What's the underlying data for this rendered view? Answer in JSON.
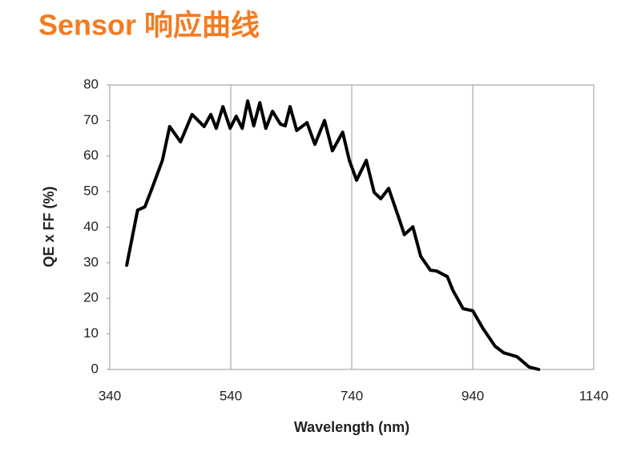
{
  "chart_data": {
    "type": "line",
    "title": "Sensor 响应曲线",
    "xlabel": "Wavelength (nm)",
    "ylabel": "QE x FF (%)",
    "x": [
      368,
      386,
      398,
      410,
      427,
      439,
      457,
      476,
      496,
      507,
      516,
      527,
      539,
      549,
      559,
      568,
      578,
      588,
      598,
      609,
      622,
      630,
      638,
      649,
      666,
      679,
      695,
      708,
      725,
      736,
      748,
      764,
      777,
      788,
      801,
      817,
      827,
      841,
      854,
      870,
      880,
      898,
      907,
      924,
      940,
      957,
      977,
      991,
      1013,
      1033,
      1049
    ],
    "series": [
      {
        "name": "QE x FF",
        "color": "#000000",
        "values": [
          29.3,
          44.8,
          45.7,
          51,
          58.8,
          68.3,
          64,
          71.7,
          68.3,
          71.7,
          67.8,
          73.9,
          67.8,
          71.2,
          67.8,
          75.5,
          68.5,
          75,
          67.8,
          72.6,
          69,
          68.5,
          73.9,
          67.2,
          69.4,
          63.3,
          70,
          61.5,
          66.7,
          58.8,
          53.2,
          58.8,
          49.8,
          48,
          50.9,
          43,
          37.9,
          40.1,
          31.8,
          27.9,
          27.7,
          26.1,
          22.3,
          17.1,
          16.5,
          11.5,
          6.5,
          4.7,
          3.6,
          0.7,
          0
        ]
      }
    ],
    "xlim": [
      340,
      1140
    ],
    "xticks": [
      340,
      540,
      740,
      940,
      1140
    ],
    "ylim": [
      0,
      80
    ],
    "yticks": [
      0,
      10,
      20,
      30,
      40,
      50,
      60,
      70,
      80
    ],
    "grid": "x"
  }
}
